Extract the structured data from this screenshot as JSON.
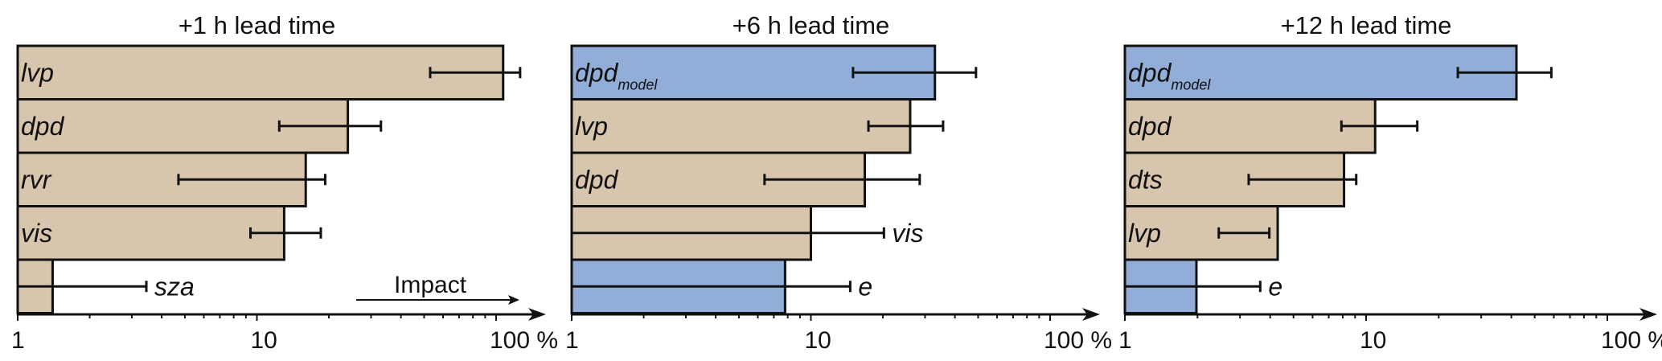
{
  "colors": {
    "observation": "#d8c5ae",
    "model": "#92aed8",
    "line": "#111111"
  },
  "chart_data": [
    {
      "type": "bar",
      "orientation": "horizontal",
      "title": "+1 h lead time",
      "x_scale": "log",
      "xlim": [
        1,
        130
      ],
      "x_ticks": [
        "1",
        "10",
        "100 %"
      ],
      "annotation": "Impact",
      "bars": [
        {
          "label": "lvp",
          "subscript": "",
          "value": 107,
          "err": [
            53,
            126
          ],
          "kind": "observation"
        },
        {
          "label": "dpd",
          "subscript": "",
          "value": 24,
          "err": [
            12.4,
            33
          ],
          "kind": "observation"
        },
        {
          "label": "rvr",
          "subscript": "",
          "value": 16,
          "err": [
            4.7,
            19.3
          ],
          "kind": "observation"
        },
        {
          "label": "vis",
          "subscript": "",
          "value": 13,
          "err": [
            9.4,
            18.5
          ],
          "kind": "observation"
        },
        {
          "label": "sza",
          "subscript": "",
          "value": 1.4,
          "err": [
            1,
            3.45
          ],
          "kind": "observation"
        }
      ]
    },
    {
      "type": "bar",
      "orientation": "horizontal",
      "title": "+6 h lead time",
      "x_scale": "log",
      "xlim": [
        1,
        130
      ],
      "x_ticks": [
        "1",
        "10",
        "100 %"
      ],
      "bars": [
        {
          "label": "dpd",
          "subscript": "model",
          "value": 33,
          "err": [
            15,
            49
          ],
          "kind": "model"
        },
        {
          "label": "lvp",
          "subscript": "",
          "value": 26,
          "err": [
            17.4,
            35.7
          ],
          "kind": "observation"
        },
        {
          "label": "dpd",
          "subscript": "",
          "value": 16.8,
          "err": [
            6.4,
            28.5
          ],
          "kind": "observation"
        },
        {
          "label": "vis",
          "subscript": "",
          "value": 10,
          "err": [
            1,
            20.2
          ],
          "kind": "observation"
        },
        {
          "label": "e",
          "subscript": "",
          "value": 7.8,
          "err": [
            1,
            14.6
          ],
          "kind": "model"
        }
      ]
    },
    {
      "type": "bar",
      "orientation": "horizontal",
      "title": "+12 h lead time",
      "x_scale": "log",
      "xlim": [
        1,
        130
      ],
      "x_ticks": [
        "1",
        "10",
        "100 %"
      ],
      "bars": [
        {
          "label": "dpd",
          "subscript": "model",
          "value": 42,
          "err": [
            24,
            58.6
          ],
          "kind": "model"
        },
        {
          "label": "dpd",
          "subscript": "",
          "value": 10.9,
          "err": [
            7.9,
            16.3
          ],
          "kind": "observation"
        },
        {
          "label": "dts",
          "subscript": "",
          "value": 8.1,
          "err": [
            3.26,
            9.1
          ],
          "kind": "observation"
        },
        {
          "label": "lvp",
          "subscript": "",
          "value": 4.3,
          "err": [
            2.45,
            3.97
          ],
          "kind": "observation"
        },
        {
          "label": "e",
          "subscript": "",
          "value": 1.98,
          "err": [
            1,
            3.64
          ],
          "kind": "model"
        }
      ]
    }
  ]
}
